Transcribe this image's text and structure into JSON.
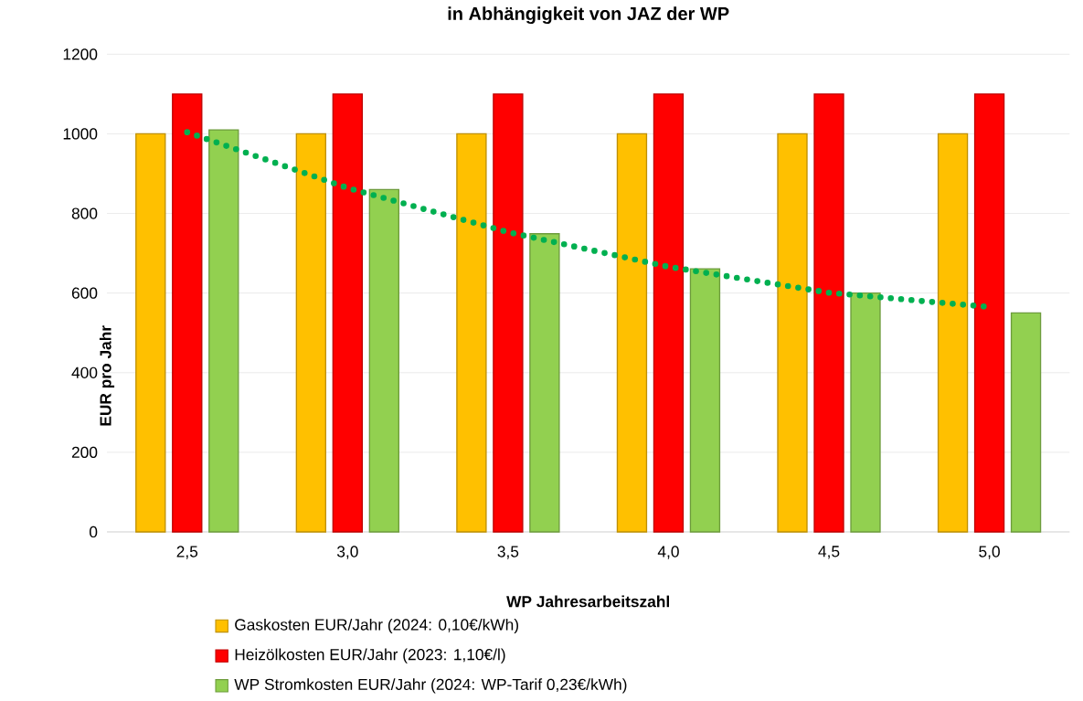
{
  "chart_data": {
    "type": "bar",
    "title": "in Abhängigkeit von JAZ der WP",
    "xlabel": "WP Jahresarbeitszahl",
    "ylabel": "EUR pro Jahr",
    "categories": [
      "2,5",
      "3,0",
      "3,5",
      "4,0",
      "4,5",
      "5,0"
    ],
    "series": [
      {
        "name": "Gaskosten EUR/Jahr (2024: 0,10€/kWh)",
        "color": "#ffc000",
        "values": [
          1000,
          1000,
          1000,
          1000,
          1000,
          1000
        ]
      },
      {
        "name": "Heizölkosten EUR/Jahr (2023: 1,10€/l)",
        "color": "#ff0000",
        "values": [
          1100,
          1100,
          1100,
          1100,
          1100,
          1100
        ]
      },
      {
        "name": "WP Stromkosten EUR/Jahr (2024: WP-Tarif 0,23€/kWh)",
        "color": "#92d050",
        "values": [
          1010,
          860,
          749,
          661,
          600,
          550
        ]
      },
      {
        "type": "line",
        "color": "#00b050",
        "line_style": "dotted",
        "marker": "none",
        "values": [
          1004,
          864,
          753,
          666,
          601,
          565
        ]
      }
    ],
    "ylim": [
      0,
      1200
    ],
    "yticks": [
      0,
      200,
      400,
      600,
      800,
      1000,
      1200
    ],
    "grid": "y",
    "legend": "bottom"
  }
}
